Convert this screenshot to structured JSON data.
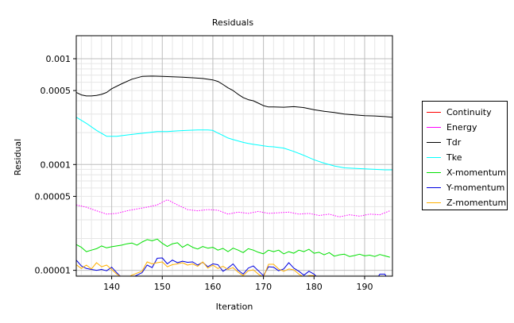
{
  "chart_data": {
    "type": "line",
    "title": "Residuals",
    "xlabel": "Iteration",
    "ylabel": "Residual",
    "y_scale": "log",
    "xlim": [
      133,
      195.5
    ],
    "ylim": [
      8.8e-06,
      0.00165
    ],
    "x_ticks": [
      140,
      150,
      160,
      170,
      180,
      190
    ],
    "x_tick_labels": [
      "140",
      "150",
      "160",
      "170",
      "180",
      "190"
    ],
    "y_ticks": [
      1e-05,
      5e-05,
      0.0001,
      0.0005,
      0.001
    ],
    "y_tick_labels": [
      "0.00001",
      "0.00005",
      "0.0001",
      "0.0005",
      "0.001"
    ],
    "grid": true,
    "legend_position": "right",
    "series": [
      {
        "name": "Continuity",
        "color": "#ff0000",
        "style": "solid",
        "x": [],
        "y": []
      },
      {
        "name": "Energy",
        "color": "#ff00ff",
        "style": "dotted",
        "x": [
          133,
          135,
          137,
          139,
          141,
          143,
          145,
          147,
          149,
          151,
          153,
          155,
          157,
          159,
          161,
          163,
          165,
          167,
          169,
          171,
          173,
          175,
          177,
          179,
          181,
          183,
          185,
          187,
          189,
          191,
          193,
          195
        ],
        "y": [
          4.15e-05,
          3.95e-05,
          3.65e-05,
          3.4e-05,
          3.45e-05,
          3.65e-05,
          3.8e-05,
          3.95e-05,
          4.15e-05,
          4.65e-05,
          4.15e-05,
          3.75e-05,
          3.65e-05,
          3.75e-05,
          3.7e-05,
          3.4e-05,
          3.55e-05,
          3.45e-05,
          3.6e-05,
          3.45e-05,
          3.5e-05,
          3.55e-05,
          3.4e-05,
          3.45e-05,
          3.3e-05,
          3.4e-05,
          3.2e-05,
          3.35e-05,
          3.25e-05,
          3.4e-05,
          3.35e-05,
          3.65e-05
        ]
      },
      {
        "name": "Tdr",
        "color": "#000000",
        "style": "solid",
        "x": [
          133,
          134,
          135,
          136,
          137,
          138,
          139,
          140,
          142,
          144,
          146,
          148,
          150,
          152,
          154,
          156,
          158,
          160,
          161,
          162,
          163,
          164,
          165,
          166,
          167,
          168,
          169,
          170,
          171,
          172,
          174,
          176,
          178,
          180,
          182,
          184,
          186,
          188,
          190,
          192,
          194,
          195.5
        ],
        "y": [
          0.00048,
          0.000455,
          0.000445,
          0.000445,
          0.00045,
          0.00046,
          0.00048,
          0.00052,
          0.00058,
          0.00064,
          0.00068,
          0.000685,
          0.00068,
          0.000675,
          0.00067,
          0.00066,
          0.00065,
          0.00063,
          0.00061,
          0.00057,
          0.00053,
          0.0005,
          0.00046,
          0.00043,
          0.00041,
          0.0004,
          0.00038,
          0.00036,
          0.00035,
          0.00035,
          0.000348,
          0.000352,
          0.000345,
          0.00033,
          0.000318,
          0.00031,
          0.0003,
          0.000295,
          0.00029,
          0.000288,
          0.000284,
          0.00028
        ]
      },
      {
        "name": "Tke",
        "color": "#00ffff",
        "style": "solid",
        "x": [
          133,
          135,
          137,
          139,
          141,
          143,
          145,
          147,
          149,
          151,
          153,
          155,
          157,
          159,
          160,
          161,
          162,
          163,
          164,
          165,
          166,
          167,
          168,
          169,
          170,
          171,
          172,
          174,
          176,
          178,
          180,
          182,
          184,
          186,
          188,
          190,
          192,
          194,
          195.5
        ],
        "y": [
          0.00028,
          0.000245,
          0.00021,
          0.000185,
          0.000185,
          0.00019,
          0.000195,
          0.0002,
          0.000205,
          0.000205,
          0.000208,
          0.00021,
          0.000212,
          0.000212,
          0.00021,
          0.000198,
          0.000188,
          0.000178,
          0.000172,
          0.000167,
          0.000162,
          0.000158,
          0.000155,
          0.000153,
          0.00015,
          0.000148,
          0.000147,
          0.000143,
          0.000133,
          0.000122,
          0.000111,
          0.000103,
          9.7e-05,
          9.3e-05,
          9.2e-05,
          9.1e-05,
          9e-05,
          8.9e-05,
          8.9e-05
        ]
      },
      {
        "name": "X-momentum",
        "color": "#00e000",
        "style": "solid",
        "x": [
          133,
          134,
          135,
          136,
          137,
          138,
          139,
          140,
          141,
          142,
          143,
          144,
          145,
          146,
          147,
          148,
          149,
          150,
          151,
          152,
          153,
          154,
          155,
          156,
          157,
          158,
          159,
          160,
          161,
          162,
          163,
          164,
          165,
          166,
          167,
          168,
          169,
          170,
          171,
          172,
          173,
          174,
          175,
          176,
          177,
          178,
          179,
          180,
          181,
          182,
          183,
          184,
          185,
          186,
          187,
          188,
          189,
          190,
          191,
          192,
          193,
          194,
          195
        ],
        "y": [
          1.75e-05,
          1.65e-05,
          1.5e-05,
          1.55e-05,
          1.6e-05,
          1.7e-05,
          1.63e-05,
          1.67e-05,
          1.7e-05,
          1.73e-05,
          1.78e-05,
          1.81e-05,
          1.73e-05,
          1.85e-05,
          1.95e-05,
          1.9e-05,
          1.97e-05,
          1.8e-05,
          1.68e-05,
          1.78e-05,
          1.82e-05,
          1.65e-05,
          1.76e-05,
          1.65e-05,
          1.59e-05,
          1.68e-05,
          1.62e-05,
          1.65e-05,
          1.55e-05,
          1.61e-05,
          1.5e-05,
          1.62e-05,
          1.55e-05,
          1.47e-05,
          1.6e-05,
          1.55e-05,
          1.48e-05,
          1.43e-05,
          1.55e-05,
          1.5e-05,
          1.55e-05,
          1.43e-05,
          1.5e-05,
          1.45e-05,
          1.55e-05,
          1.5e-05,
          1.58e-05,
          1.45e-05,
          1.48e-05,
          1.4e-05,
          1.47e-05,
          1.36e-05,
          1.4e-05,
          1.42e-05,
          1.35e-05,
          1.38e-05,
          1.42e-05,
          1.37e-05,
          1.39e-05,
          1.35e-05,
          1.41e-05,
          1.37e-05,
          1.33e-05
        ]
      },
      {
        "name": "Y-momentum",
        "color": "#0000e0",
        "style": "solid",
        "x": [
          133,
          134,
          135,
          136,
          137,
          138,
          139,
          140,
          141,
          142,
          143,
          144,
          145,
          146,
          147,
          148,
          149,
          150,
          151,
          152,
          153,
          154,
          155,
          156,
          157,
          158,
          159,
          160,
          161,
          162,
          163,
          164,
          165,
          166,
          167,
          168,
          169,
          170,
          171,
          172,
          173,
          174,
          175,
          176,
          177,
          178,
          179,
          180,
          181,
          182,
          183,
          184,
          185,
          186,
          187,
          188,
          189,
          190,
          191,
          192,
          193,
          194,
          195
        ],
        "y": [
          1.25e-05,
          1.1e-05,
          1.04e-05,
          1.02e-05,
          1e-05,
          1.02e-05,
          9.9e-06,
          1.07e-05,
          9.5e-06,
          8.5e-06,
          8e-06,
          8.5e-06,
          9e-06,
          9.5e-06,
          1.12e-05,
          1.06e-05,
          1.3e-05,
          1.31e-05,
          1.15e-05,
          1.25e-05,
          1.18e-05,
          1.22e-05,
          1.19e-05,
          1.2e-05,
          1.12e-05,
          1.19e-05,
          1.08e-05,
          1.15e-05,
          1.13e-05,
          9.8e-06,
          1.05e-05,
          1.15e-05,
          1e-05,
          9.2e-06,
          1.05e-05,
          1.1e-05,
          9.9e-06,
          8.9e-06,
          1.08e-05,
          1.07e-05,
          9.9e-06,
          1.03e-05,
          1.18e-05,
          1.05e-05,
          9.8e-06,
          9e-06,
          9.8e-06,
          9.2e-06,
          8.2e-06,
          7.9e-06,
          7.8e-06,
          7.7e-06,
          7.6e-06,
          7.6e-06,
          7.6e-06,
          7.6e-06,
          7.6e-06,
          7.6e-06,
          7.6e-06,
          7.6e-06,
          9.2e-06,
          9.2e-06,
          7.6e-06
        ]
      },
      {
        "name": "Z-momentum",
        "color": "#ffb000",
        "style": "solid",
        "x": [
          133,
          134,
          135,
          136,
          137,
          138,
          139,
          140,
          141,
          142,
          143,
          144,
          145,
          146,
          147,
          148,
          149,
          150,
          151,
          152,
          153,
          154,
          155,
          156,
          157,
          158,
          159,
          160,
          161,
          162,
          163,
          164,
          165,
          166,
          167,
          168,
          169,
          170,
          171,
          172,
          173,
          174,
          175,
          176,
          177,
          178,
          179,
          180,
          181,
          182,
          183,
          184,
          185,
          186,
          187,
          188,
          189,
          190,
          191,
          192,
          193,
          194,
          195
        ],
        "y": [
          1.13e-05,
          1.04e-05,
          1.12e-05,
          1.03e-05,
          1.18e-05,
          1.08e-05,
          1.12e-05,
          1.02e-05,
          9.2e-06,
          8.6e-06,
          8.4e-06,
          9e-06,
          9.4e-06,
          9.8e-06,
          1.2e-05,
          1.15e-05,
          1.18e-05,
          1.2e-05,
          1.08e-05,
          1.13e-05,
          1.15e-05,
          1.18e-05,
          1.12e-05,
          1.15e-05,
          1.09e-05,
          1.2e-05,
          1.05e-05,
          1.12e-05,
          1.04e-05,
          1.09e-05,
          1.02e-05,
          1.06e-05,
          9.6e-06,
          8.9e-06,
          9.9e-06,
          1.01e-05,
          9.2e-06,
          8.6e-06,
          1.14e-05,
          1.14e-05,
          1.03e-05,
          9.8e-06,
          1.03e-05,
          1.01e-05,
          9.2e-06,
          8.6e-06,
          8.9e-06,
          8.9e-06,
          8.2e-06,
          7.8e-06,
          7.7e-06,
          7.6e-06,
          7.6e-06,
          7.6e-06,
          7.6e-06,
          7.6e-06,
          7.6e-06,
          7.6e-06,
          7.6e-06,
          7.6e-06,
          7.6e-06,
          7.6e-06,
          7.6e-06
        ]
      }
    ]
  }
}
